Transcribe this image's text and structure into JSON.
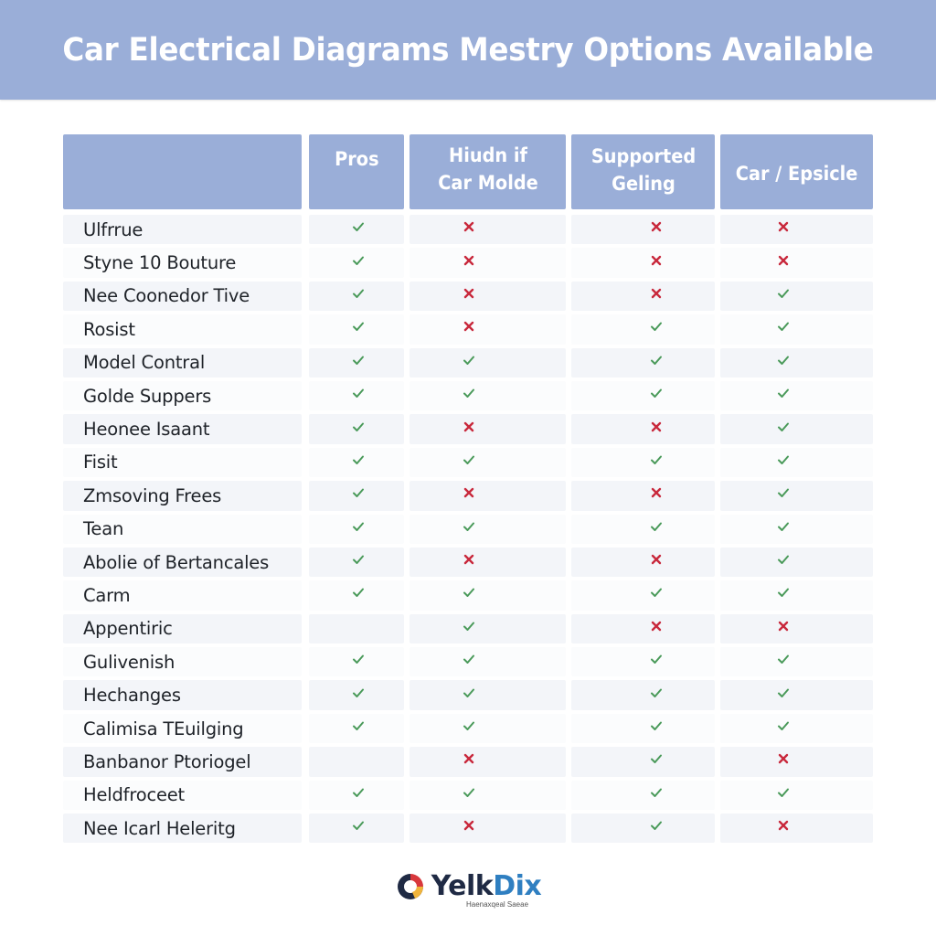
{
  "header": {
    "title": "Car Electrical Diagrams Mestry Options Available",
    "background_color": "#9aaed8"
  },
  "table": {
    "columns": [
      {
        "label": ""
      },
      {
        "label": "Pros"
      },
      {
        "label": "Hiudn if Car Molde"
      },
      {
        "label": "Supported Geling"
      },
      {
        "label": "Car / Epsicle"
      }
    ],
    "mark_colors": {
      "check": "#4a9a5a",
      "cross": "#c8283c"
    },
    "rows": [
      {
        "name": "Ulfrrue",
        "values": [
          "check",
          "cross",
          "cross",
          "cross"
        ]
      },
      {
        "name": "Styne 10 Bouture",
        "values": [
          "check",
          "cross",
          "cross",
          "cross"
        ]
      },
      {
        "name": "Nee Coonedor Tive",
        "values": [
          "check",
          "cross",
          "cross",
          "check"
        ]
      },
      {
        "name": "Rosist",
        "values": [
          "check",
          "cross",
          "check",
          "check"
        ]
      },
      {
        "name": "Model Contral",
        "values": [
          "check",
          "check",
          "check",
          "check"
        ]
      },
      {
        "name": "Golde Suppers",
        "values": [
          "check",
          "check",
          "check",
          "check"
        ]
      },
      {
        "name": "Heonee Isaant",
        "values": [
          "check",
          "cross",
          "cross",
          "check"
        ]
      },
      {
        "name": "Fisit",
        "values": [
          "check",
          "check",
          "check",
          "check"
        ]
      },
      {
        "name": "Zmsoving Frees",
        "values": [
          "check",
          "cross",
          "cross",
          "check"
        ]
      },
      {
        "name": "Tean",
        "values": [
          "check",
          "check",
          "check",
          "check"
        ]
      },
      {
        "name": "Abolie of Bertancales",
        "values": [
          "check",
          "cross",
          "cross",
          "check"
        ]
      },
      {
        "name": "Carm",
        "values": [
          "check",
          "check",
          "check",
          "check"
        ]
      },
      {
        "name": "Appentiric",
        "values": [
          "none",
          "check",
          "cross",
          "cross"
        ]
      },
      {
        "name": "Gulivenish",
        "values": [
          "check",
          "check",
          "check",
          "check"
        ]
      },
      {
        "name": "Hechanges",
        "values": [
          "check",
          "check",
          "check",
          "check"
        ]
      },
      {
        "name": "Calimisa TEuilging",
        "values": [
          "check",
          "check",
          "check",
          "check"
        ]
      },
      {
        "name": "Banbanor Ptoriogel",
        "values": [
          "none",
          "cross",
          "check",
          "cross"
        ]
      },
      {
        "name": "Heldfroceet",
        "values": [
          "check",
          "check",
          "check",
          "check"
        ]
      },
      {
        "name": "Nee Icarl Heleritg",
        "values": [
          "check",
          "cross",
          "check",
          "cross"
        ]
      }
    ]
  },
  "footer": {
    "logo_text_main": "Yelk",
    "logo_text_accent": "Dix",
    "tagline": "Haenaxqeal Saeae",
    "logo_icon": "swirl-logo-icon"
  }
}
